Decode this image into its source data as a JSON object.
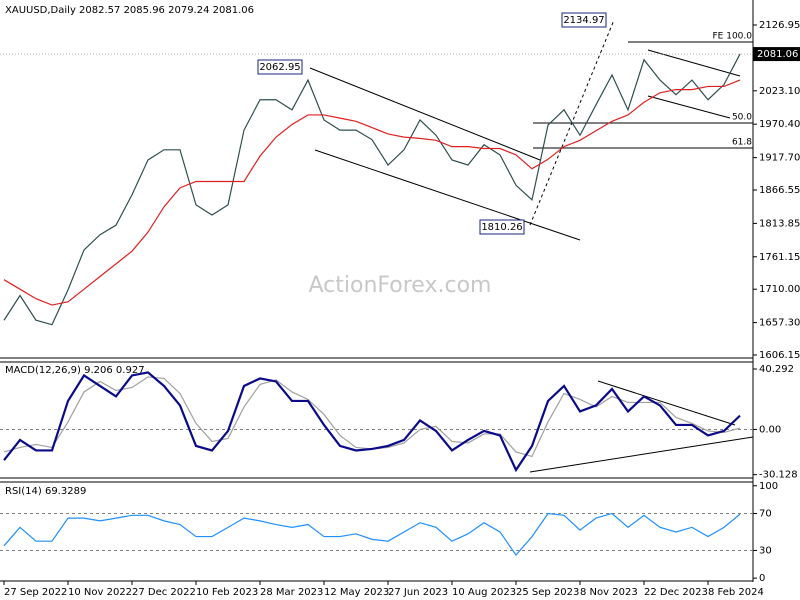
{
  "header": "XAUUSD,Daily  2082.57 2085.96 2079.24 2081.06",
  "watermark": "ActionForex.com",
  "annotations": [
    "2134.97",
    "2062.95",
    "1810.26"
  ],
  "fibo_labels": [
    "FE 100.0",
    "50.0",
    "61.8"
  ],
  "categories": [
    "27 Sep 2022",
    null,
    null,
    null,
    "10 Nov 2022",
    null,
    null,
    null,
    "27 Dec 2022",
    null,
    null,
    null,
    "10 Feb 2023",
    null,
    null,
    null,
    "28 Mar 2023",
    null,
    null,
    null,
    "12 May 2023",
    null,
    null,
    null,
    "27 Jun 2023",
    null,
    null,
    null,
    "10 Aug 2023",
    null,
    null,
    null,
    "25 Sep 2023",
    null,
    null,
    null,
    "8 Nov 2023",
    null,
    null,
    null,
    "22 Dec 2023",
    null,
    null,
    null,
    "8 Feb 2024",
    null,
    null
  ],
  "chart_data": [
    {
      "type": "line",
      "last_value": 2081.06,
      "ylim": [
        1603,
        2166.4
      ],
      "yticks": [
        2126.95,
        {
          "value": 2023.1,
          "label": "2023.10"
        },
        {
          "value": 1970.4,
          "label": "1970.40"
        },
        {
          "value": 1917.7,
          "label": "1917.70"
        },
        1866.55,
        1813.85,
        1761.15,
        {
          "value": 1710,
          "label": "1710.00"
        },
        {
          "value": 1657.3,
          "label": "1657.30"
        },
        1606.15
      ],
      "series": [
        {
          "color": "#2f4f4f",
          "values": [
            1661,
            1700,
            1661,
            1654,
            1709,
            1772,
            1796,
            1811,
            1859,
            1914,
            1930,
            1930,
            1843,
            1827,
            1843,
            1961,
            2009,
            2009,
            1993,
            2040,
            1977,
            1961,
            1961,
            1946,
            1906,
            1930,
            1977,
            1953,
            1914,
            1906,
            1938,
            1922,
            1874,
            1851,
            1969,
            1993,
            1953,
            2001,
            2048,
            1993,
            2072,
            2040,
            2017,
            2040,
            2009,
            2033,
            2081.06
          ]
        },
        {
          "color": "#e02020",
          "values": [
            1725,
            1710,
            1695,
            1685,
            1690,
            1710,
            1730,
            1750,
            1770,
            1800,
            1840,
            1870,
            1880,
            1880,
            1880,
            1880,
            1920,
            1950,
            1970,
            1985,
            1985,
            1980,
            1975,
            1965,
            1955,
            1950,
            1948,
            1945,
            1935,
            1935,
            1932,
            1932,
            1922,
            1900,
            1915,
            1935,
            1945,
            1960,
            1975,
            1985,
            2005,
            2020,
            2025,
            2025,
            2030,
            2030,
            2040
          ]
        }
      ]
    },
    {
      "type": "line",
      "title": "MACD(12,26,9) 9.206 0.927",
      "ylim": [
        -31.7,
        44.3
      ],
      "yticks": [
        40.292,
        {
          "value": 0,
          "label": "0.00"
        },
        -30.128
      ],
      "reference_lines": [
        0
      ],
      "series": [
        {
          "color": "#a0a0a0",
          "values": [
            -15,
            -12,
            -10,
            -12,
            5,
            25,
            32,
            26,
            28,
            35,
            34,
            24,
            4,
            -8,
            -6,
            15,
            30,
            33,
            25,
            20,
            10,
            -4,
            -12,
            -13,
            -12,
            -9,
            0,
            2,
            -8,
            -9,
            -3,
            -3,
            -15,
            -18,
            5,
            24,
            20,
            15,
            22,
            18,
            18,
            18,
            8,
            4,
            -1,
            -2,
            0.927
          ]
        },
        {
          "color": "#0a0a8a",
          "values": [
            -20.5,
            -7,
            -14,
            -14,
            19,
            36,
            29,
            22,
            36,
            38,
            29,
            16,
            -11,
            -14,
            -1,
            29,
            34,
            32,
            19,
            19,
            3,
            -11,
            -14,
            -13,
            -11,
            -7,
            6,
            -1,
            -14,
            -7,
            -1,
            -4,
            -27,
            -11,
            19,
            29,
            12,
            16,
            27,
            12,
            22,
            16,
            3,
            3,
            -4,
            -1,
            9.206
          ]
        }
      ]
    },
    {
      "type": "line",
      "title": "RSI(14) 69.3289",
      "ylim": [
        -2,
        103
      ],
      "yticks": [
        100,
        70,
        30,
        0
      ],
      "reference_lines": [
        70,
        30
      ],
      "series": [
        {
          "color": "#1e90ff",
          "values": [
            35,
            55,
            40,
            40,
            65,
            65,
            62,
            65,
            68,
            68,
            62,
            58,
            45,
            45,
            55,
            65,
            62,
            58,
            55,
            58,
            45,
            45,
            48,
            42,
            40,
            50,
            60,
            55,
            40,
            48,
            60,
            50,
            25,
            45,
            70,
            68,
            52,
            65,
            70,
            55,
            68,
            55,
            50,
            55,
            45,
            55,
            69.3289
          ]
        }
      ]
    }
  ]
}
